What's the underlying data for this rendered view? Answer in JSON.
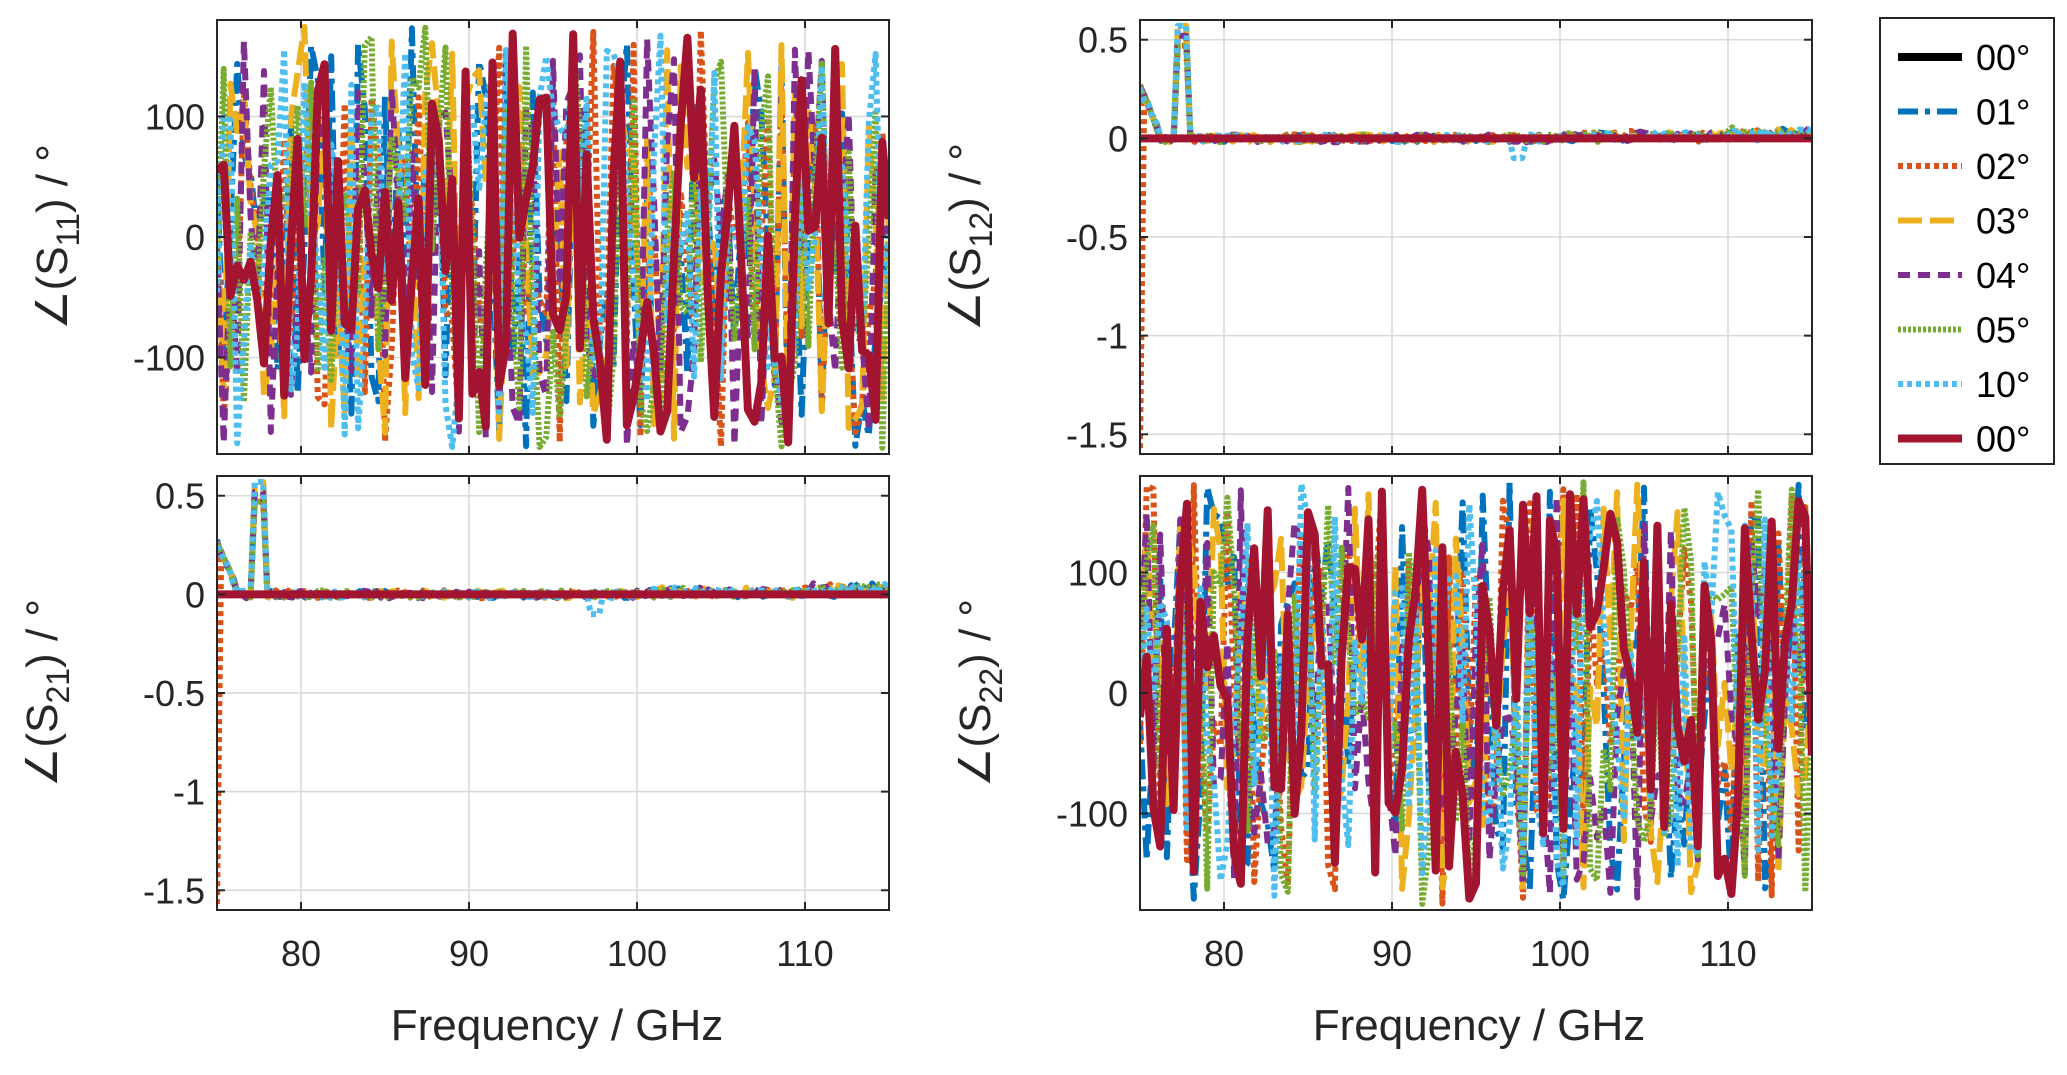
{
  "chart_data": {
    "type": "line",
    "xlabel": "Frequency / GHz",
    "xlim": [
      75,
      115
    ],
    "xticks": [
      80,
      90,
      100,
      110
    ],
    "legend": {
      "placement": "outside-right",
      "entries": [
        {
          "name": "00°",
          "color": "#000000",
          "style": "solid"
        },
        {
          "name": "01°",
          "color": "#0072BD",
          "style": "dashdot"
        },
        {
          "name": "02°",
          "color": "#D95319",
          "style": "dotted"
        },
        {
          "name": "03°",
          "color": "#EDB120",
          "style": "dashed"
        },
        {
          "name": "04°",
          "color": "#7E2F8E",
          "style": "dashed-short"
        },
        {
          "name": "05°",
          "color": "#77AC30",
          "style": "dotted-fine"
        },
        {
          "name": "10°",
          "color": "#4DBEEE",
          "style": "dotted"
        },
        {
          "name": "00°",
          "color": "#A2142F",
          "style": "solid"
        }
      ]
    },
    "panels": [
      {
        "id": "s11",
        "ylabel_prefix": "∠(S",
        "ylabel_sub": "11",
        "ylabel_suffix": ") / °",
        "ylim": [
          -180,
          180
        ],
        "yticks": [
          100,
          0,
          -100
        ],
        "ytick_labels": [
          "100",
          "0",
          "-100"
        ],
        "show_xticklabels": false,
        "kind": "wrapped-phase",
        "seed": 11
      },
      {
        "id": "s12",
        "ylabel_prefix": "∠(S",
        "ylabel_sub": "12",
        "ylabel_suffix": ") / °",
        "ylim": [
          -1.6,
          0.6
        ],
        "yticks": [
          0.5,
          0,
          -0.5,
          -1,
          -1.5
        ],
        "ytick_labels": [
          "0.5",
          "0",
          "-0.5",
          "-1",
          "-1.5"
        ],
        "show_xticklabels": false,
        "kind": "near-zero",
        "seed": 12
      },
      {
        "id": "s21",
        "ylabel_prefix": "∠(S",
        "ylabel_sub": "21",
        "ylabel_suffix": ") / °",
        "ylim": [
          -1.6,
          0.6
        ],
        "yticks": [
          0.5,
          0,
          -0.5,
          -1,
          -1.5
        ],
        "ytick_labels": [
          "0.5",
          "0",
          "-0.5",
          "-1",
          "-1.5"
        ],
        "show_xticklabels": true,
        "kind": "near-zero",
        "seed": 21
      },
      {
        "id": "s22",
        "ylabel_prefix": "∠(S",
        "ylabel_sub": "22",
        "ylabel_suffix": ") / °",
        "ylim": [
          -180,
          180
        ],
        "yticks": [
          100,
          0,
          -100
        ],
        "ytick_labels": [
          "100",
          "0",
          "-100"
        ],
        "show_xticklabels": true,
        "kind": "wrapped-phase",
        "seed": 22
      }
    ],
    "near_zero_features": {
      "start_drop_series": "02°",
      "start_drop_value": -1.57,
      "start_peak_x": 77.5,
      "start_peak_value": 0.57,
      "dip_x": 97.5,
      "dip_value": -0.1
    }
  }
}
